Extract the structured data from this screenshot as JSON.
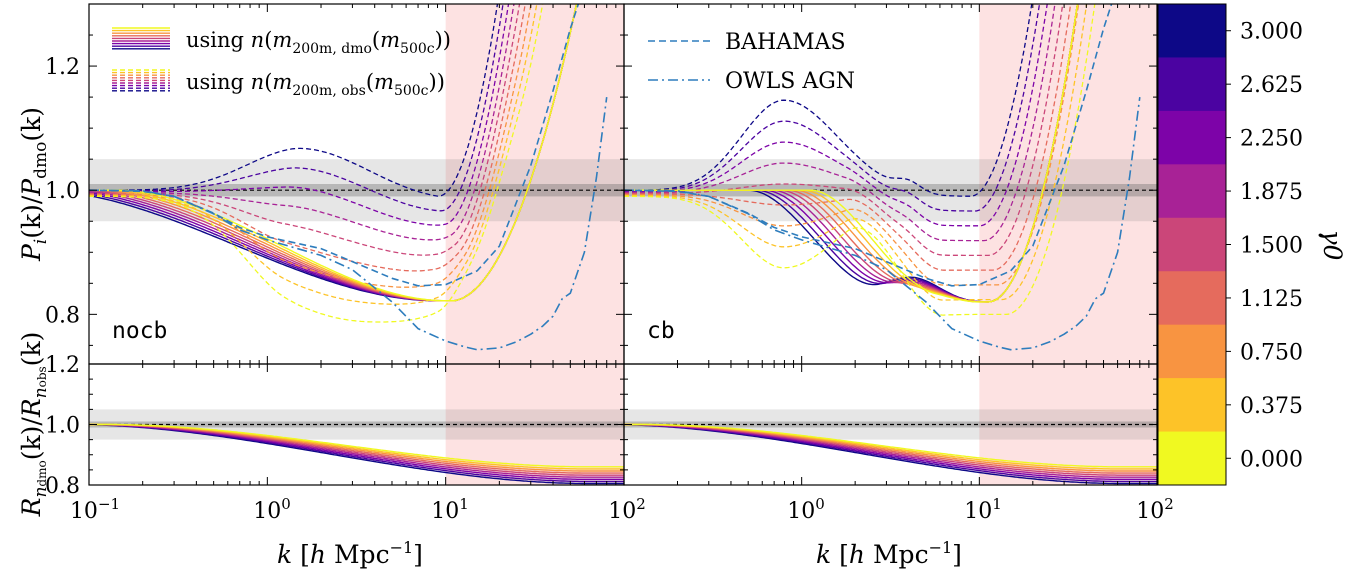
{
  "chart_data": [
    {
      "type": "line",
      "panel": "top-left",
      "label": "nocb",
      "xscale": "log",
      "xlim": [
        0.1,
        100
      ],
      "ylim": [
        0.72,
        1.3
      ],
      "yticks": [
        "0.8",
        "1.0",
        "1.2"
      ],
      "ylabel": "P_i(k)/P_dmo(k)",
      "shaded_k_min": 10,
      "bands": [
        0.05,
        0.01
      ],
      "series": [
        {
          "name": "BAHAMAS",
          "x": [
            0.1,
            0.2,
            0.3,
            0.5,
            0.7,
            1,
            2,
            3,
            5,
            7,
            10,
            15,
            20,
            30,
            40,
            50,
            60
          ],
          "y": [
            1.0,
            0.998,
            0.99,
            0.963,
            0.94,
            0.925,
            0.906,
            0.885,
            0.858,
            0.846,
            0.848,
            0.87,
            0.91,
            1.04,
            1.16,
            1.26,
            1.33
          ]
        },
        {
          "name": "OWLS AGN",
          "x": [
            0.1,
            0.2,
            0.3,
            0.5,
            0.7,
            1,
            2,
            3,
            5,
            7,
            10,
            13,
            15,
            20,
            25,
            30,
            35,
            40,
            45,
            50,
            60,
            70,
            80
          ],
          "y": [
            1.0,
            0.999,
            0.99,
            0.962,
            0.936,
            0.92,
            0.895,
            0.872,
            0.82,
            0.777,
            0.757,
            0.747,
            0.743,
            0.746,
            0.756,
            0.768,
            0.781,
            0.797,
            0.825,
            0.834,
            0.9,
            1.02,
            1.15
          ]
        }
      ]
    },
    {
      "type": "line",
      "panel": "top-right",
      "label": "cb",
      "xscale": "log",
      "xlim": [
        0.1,
        100
      ],
      "ylim": [
        0.72,
        1.3
      ],
      "shaded_k_min": 10,
      "series": [
        {
          "name": "BAHAMAS",
          "x": [
            0.1,
            0.2,
            0.3,
            0.5,
            0.7,
            1,
            2,
            3,
            5,
            7,
            10,
            15,
            20,
            30,
            40,
            50,
            60
          ],
          "y": [
            1.0,
            0.998,
            0.99,
            0.963,
            0.94,
            0.925,
            0.906,
            0.885,
            0.858,
            0.846,
            0.848,
            0.87,
            0.91,
            1.04,
            1.16,
            1.26,
            1.33
          ]
        },
        {
          "name": "OWLS AGN",
          "x": [
            0.1,
            0.2,
            0.3,
            0.5,
            0.7,
            1,
            2,
            3,
            5,
            7,
            10,
            13,
            15,
            20,
            25,
            30,
            35,
            40,
            45,
            50,
            60,
            70,
            80
          ],
          "y": [
            1.0,
            0.999,
            0.99,
            0.962,
            0.936,
            0.92,
            0.895,
            0.872,
            0.82,
            0.777,
            0.757,
            0.747,
            0.743,
            0.746,
            0.756,
            0.768,
            0.781,
            0.797,
            0.825,
            0.834,
            0.9,
            1.02,
            1.15
          ]
        }
      ]
    },
    {
      "type": "line",
      "panel": "bottom-left",
      "xscale": "log",
      "xlim": [
        0.1,
        100
      ],
      "ylim": [
        0.8,
        1.2
      ],
      "yticks": [
        "0.8",
        "1.0",
        "1.2"
      ],
      "ylabel": "R_n_dmo(k)/R_n_obs(k)",
      "xlabel": "k [h Mpc^-1]"
    },
    {
      "type": "line",
      "panel": "bottom-right",
      "xscale": "log",
      "xlim": [
        0.1,
        100
      ],
      "ylim": [
        0.8,
        1.2
      ],
      "xlabel": "k [h Mpc^-1]"
    }
  ],
  "colorbar": {
    "label": "γ0",
    "ticks": [
      "3.000",
      "2.625",
      "2.250",
      "1.875",
      "1.500",
      "1.125",
      "0.750",
      "0.375",
      "0.000"
    ],
    "colors": [
      "#0d0887",
      "#4b03a1",
      "#7d03a8",
      "#a82296",
      "#cb4679",
      "#e56b5d",
      "#f89441",
      "#fdc328",
      "#f0f921"
    ]
  },
  "legend": {
    "left": [
      {
        "text": "using n(m200m,dmo(m500c))",
        "style": "solid"
      },
      {
        "text": "using n(m200m,obs(m500c))",
        "style": "dashed"
      }
    ],
    "right": [
      {
        "text": "BAHAMAS",
        "style": "dashed"
      },
      {
        "text": "OWLS AGN",
        "style": "dashdot"
      }
    ]
  },
  "xticks": [
    "10",
    "10",
    "10",
    "10"
  ],
  "xtick_exps": [
    "−1",
    "0",
    "1",
    "2"
  ],
  "panel_labels": {
    "left": "nocb",
    "right": "cb"
  }
}
